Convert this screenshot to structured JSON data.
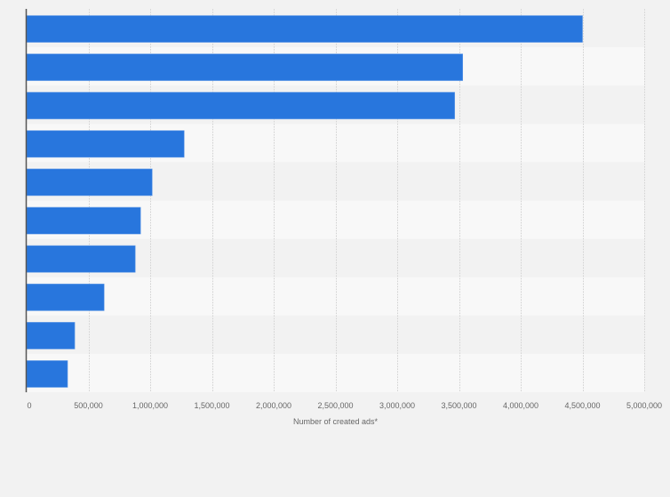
{
  "chart_data": {
    "type": "bar",
    "orientation": "horizontal",
    "title": "",
    "categories": [
      "",
      "",
      "",
      "",
      "",
      "",
      "",
      "",
      "",
      ""
    ],
    "values": [
      4500000,
      3530000,
      3465000,
      1275000,
      1016000,
      922000,
      879000,
      627000,
      389000,
      331000
    ],
    "xlabel": "Number of created ads*",
    "ylabel": "",
    "xlim": [
      0,
      5000000
    ],
    "xticks": [
      0,
      500000,
      1000000,
      1500000,
      2000000,
      2500000,
      3000000,
      3500000,
      4000000,
      4500000,
      5000000
    ],
    "xtick_labels": [
      "0",
      "500,000",
      "1,000,000",
      "1,500,000",
      "2,000,000",
      "2,500,000",
      "3,000,000",
      "3,500,000",
      "4,000,000",
      "4,500,000",
      "5,000,000"
    ],
    "grid": true,
    "legend": "none",
    "colors": {
      "bar": "#2876dd",
      "background": "#f2f2f2",
      "band_light": "#f8f8f8",
      "band_dark": "#f2f2f2",
      "grid": "#d9d9d9",
      "axis": "#555555",
      "text": "#666666"
    }
  }
}
